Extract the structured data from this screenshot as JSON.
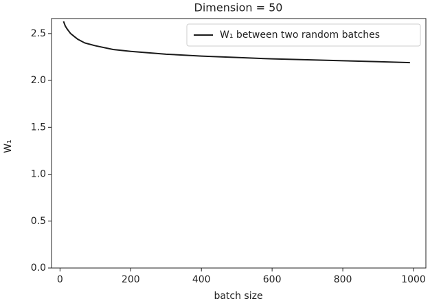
{
  "chart_data": {
    "type": "line",
    "title": "Dimension = 50",
    "x_label": "batch size",
    "y_label": "W₁",
    "x": [
      10,
      15,
      20,
      30,
      40,
      50,
      70,
      100,
      150,
      200,
      300,
      400,
      500,
      600,
      700,
      800,
      900,
      990
    ],
    "series": [
      {
        "name": "W₁ between two random batches",
        "color": "#1a1a1a",
        "values": [
          2.63,
          2.58,
          2.55,
          2.5,
          2.47,
          2.44,
          2.4,
          2.37,
          2.33,
          2.31,
          2.28,
          2.26,
          2.245,
          2.23,
          2.22,
          2.21,
          2.2,
          2.19
        ]
      }
    ],
    "xlim": [
      -24,
      1035
    ],
    "ylim": [
      0,
      2.66
    ],
    "xticks": [
      0,
      200,
      400,
      600,
      800,
      1000
    ],
    "yticks": [
      {
        "value": 0,
        "label": "0.0"
      },
      {
        "value": 0.5,
        "label": "0.5"
      },
      {
        "value": 1,
        "label": "1.0"
      },
      {
        "value": 1.5,
        "label": "1.5"
      },
      {
        "value": 2,
        "label": "2.0"
      },
      {
        "value": 2.5,
        "label": "2.5"
      }
    ],
    "legend": "upper right",
    "grid": false
  }
}
